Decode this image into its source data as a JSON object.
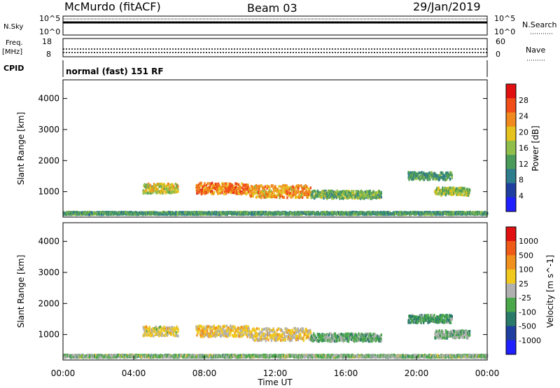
{
  "header": {
    "station": "McMurdo (fitACF)",
    "beam": "Beam 03",
    "date": "29/Jan/2019"
  },
  "side_labels": {
    "nsky": "N.Sky",
    "freq": "Freq.",
    "freq_unit": "[MHz]",
    "cpid": "CPID",
    "nsearch": "N.Search",
    "nave": "Nave"
  },
  "strips": {
    "noise_ticks_left": [
      "10^5",
      "10^0"
    ],
    "noise_ticks_right": [
      "10^5",
      "10^0"
    ],
    "freq_ticks_left": [
      "18",
      "8"
    ],
    "freq_ticks_right": [
      "60",
      "0"
    ],
    "cpid_text": "normal (fast) 151 RF"
  },
  "colors": {
    "power_scale": [
      "#1f1fff",
      "#1f3fa0",
      "#2e7d8c",
      "#4a9a5a",
      "#8fbf4a",
      "#e6c21e",
      "#f08a1e",
      "#f04d18",
      "#e01010"
    ],
    "velocity_scale": [
      "#1f1fff",
      "#1f3fa0",
      "#2a7a6a",
      "#4aa84a",
      "#b0b0b0",
      "#f0c81e",
      "#f0901e",
      "#f05a18",
      "#e01010"
    ],
    "accent_gray": "#b4b4b4"
  },
  "chart_data": [
    {
      "type": "heatmap",
      "title": "Power",
      "xlabel": "Time UT",
      "ylabel": "Slant Range [km]",
      "xlim": [
        "00:00",
        "24:00"
      ],
      "x_ticks": [
        "00:00",
        "04:00",
        "08:00",
        "12:00",
        "16:00",
        "20:00",
        "00:00"
      ],
      "ylim": [
        180,
        4600
      ],
      "y_ticks": [
        "1000",
        "2000",
        "3000",
        "4000"
      ],
      "colorbar": {
        "label": "Power [dB]",
        "ticks": [
          "28",
          "24",
          "20",
          "16",
          "12",
          "8",
          "4"
        ],
        "range": [
          0,
          32
        ]
      },
      "echo_bands": [
        {
          "t_start": 0.0,
          "t_end": 24.0,
          "range_km": 300,
          "width_km": 80,
          "value": 12
        },
        {
          "t_start": 4.5,
          "t_end": 6.5,
          "range_km": 1100,
          "width_km": 300,
          "value": 18
        },
        {
          "t_start": 7.5,
          "t_end": 10.5,
          "range_km": 1100,
          "width_km": 350,
          "value": 24
        },
        {
          "t_start": 10.5,
          "t_end": 14.0,
          "range_km": 1000,
          "width_km": 400,
          "value": 22
        },
        {
          "t_start": 14.0,
          "t_end": 18.0,
          "range_km": 900,
          "width_km": 250,
          "value": 14
        },
        {
          "t_start": 19.5,
          "t_end": 22.0,
          "range_km": 1500,
          "width_km": 250,
          "value": 12
        },
        {
          "t_start": 21.0,
          "t_end": 23.0,
          "range_km": 1000,
          "width_km": 250,
          "value": 16
        }
      ]
    },
    {
      "type": "heatmap",
      "title": "Velocity",
      "xlabel": "Time UT",
      "ylabel": "Slant Range [km]",
      "xlim": [
        "00:00",
        "24:00"
      ],
      "x_ticks": [
        "00:00",
        "04:00",
        "08:00",
        "12:00",
        "16:00",
        "20:00",
        "00:00"
      ],
      "ylim": [
        180,
        4600
      ],
      "y_ticks": [
        "1000",
        "2000",
        "3000",
        "4000"
      ],
      "colorbar": {
        "label": "Velocity [m s^-1]",
        "ticks": [
          "1000",
          "500",
          "100",
          "25",
          "-25",
          "-100",
          "-500",
          "-1000"
        ],
        "range": [
          -1000,
          1000
        ]
      },
      "echo_bands": [
        {
          "t_start": 0.0,
          "t_end": 24.0,
          "range_km": 300,
          "width_km": 80,
          "value": -100
        },
        {
          "t_start": 4.5,
          "t_end": 6.5,
          "range_km": 1100,
          "width_km": 300,
          "value": 100
        },
        {
          "t_start": 7.5,
          "t_end": 10.5,
          "range_km": 1100,
          "width_km": 350,
          "value": 200
        },
        {
          "t_start": 10.5,
          "t_end": 14.0,
          "range_km": 1000,
          "width_km": 400,
          "value": 150
        },
        {
          "t_start": 14.0,
          "t_end": 18.0,
          "range_km": 900,
          "width_km": 250,
          "value": -200
        },
        {
          "t_start": 19.5,
          "t_end": 22.0,
          "range_km": 1500,
          "width_km": 250,
          "value": -300
        },
        {
          "t_start": 21.0,
          "t_end": 23.0,
          "range_km": 1000,
          "width_km": 250,
          "value": -150
        }
      ]
    }
  ]
}
